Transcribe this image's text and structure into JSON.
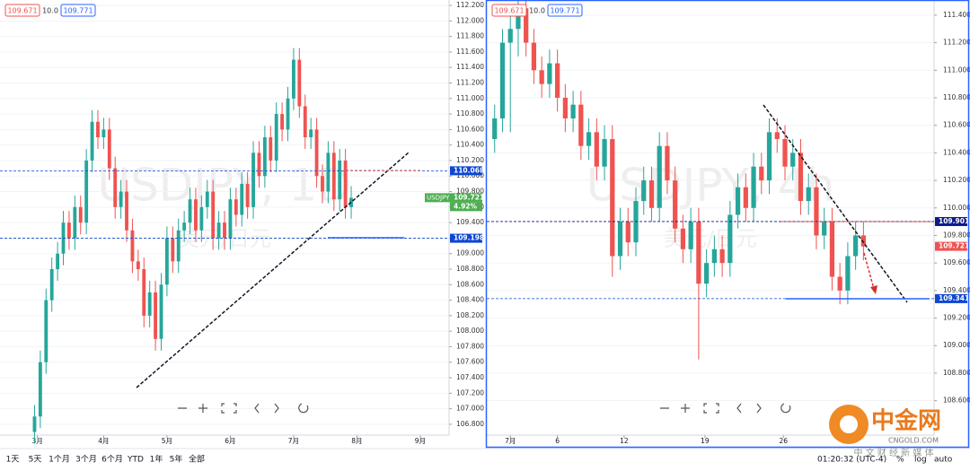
{
  "chart_data": [
    {
      "type": "candlestick",
      "watermark": "USDJPY, 1D",
      "watermark_sub": "美元/日元",
      "header": [
        "109.671",
        "10.0",
        "109.771"
      ],
      "up_color": "#26a69a",
      "down_color": "#ef5350",
      "xlim": [
        -6,
        72
      ],
      "xticks": [
        {
          "value": 0.5,
          "label": "3月"
        },
        {
          "value": 12,
          "label": "4月"
        },
        {
          "value": 23,
          "label": "5月"
        },
        {
          "value": 34,
          "label": "6月"
        },
        {
          "value": 45,
          "label": "7月"
        },
        {
          "value": 56,
          "label": "8月"
        },
        {
          "value": 67,
          "label": "9月"
        }
      ],
      "ylim": [
        106.66,
        112.27
      ],
      "yticks": [
        {
          "value": 106.8,
          "label": "106.800"
        },
        {
          "value": 107,
          "label": "107.000"
        },
        {
          "value": 107.2,
          "label": "107.200"
        },
        {
          "value": 107.4,
          "label": "107.400"
        },
        {
          "value": 107.6,
          "label": "107.600"
        },
        {
          "value": 107.8,
          "label": "107.800"
        },
        {
          "value": 108,
          "label": "108.000"
        },
        {
          "value": 108.2,
          "label": "108.200"
        },
        {
          "value": 108.4,
          "label": "108.400"
        },
        {
          "value": 108.6,
          "label": "108.600"
        },
        {
          "value": 108.8,
          "label": "108.800"
        },
        {
          "value": 109,
          "label": "109.000"
        },
        {
          "value": 109.2,
          "label": "109.200"
        },
        {
          "value": 109.4,
          "label": "109.400"
        },
        {
          "value": 109.6,
          "label": "109.600"
        },
        {
          "value": 109.8,
          "label": "109.800"
        },
        {
          "value": 110,
          "label": "110.000"
        },
        {
          "value": 110.2,
          "label": "110.200"
        },
        {
          "value": 110.4,
          "label": "110.400"
        },
        {
          "value": 110.6,
          "label": "110.600"
        },
        {
          "value": 110.8,
          "label": "110.800"
        },
        {
          "value": 111,
          "label": "111.000"
        },
        {
          "value": 111.2,
          "label": "111.200"
        },
        {
          "value": 111.4,
          "label": "111.400"
        },
        {
          "value": 111.6,
          "label": "111.600"
        },
        {
          "value": 111.8,
          "label": "111.800"
        },
        {
          "value": 112,
          "label": "112.000"
        },
        {
          "value": 112.2,
          "label": "112.200"
        }
      ],
      "open": [
        106.7,
        106.9,
        107.6,
        108.4,
        108.8,
        109.0,
        109.4,
        109.2,
        109.6,
        109.4,
        110.2,
        110.7,
        110.5,
        110.6,
        110.1,
        109.6,
        109.8,
        109.3,
        108.9,
        108.8,
        108.2,
        108.5,
        107.9,
        108.6,
        109.2,
        108.9,
        109.3,
        109.4,
        109.7,
        109.3,
        109.6,
        109.8,
        109.2,
        109.4,
        109.2,
        109.7,
        109.5,
        109.9,
        109.6,
        110.3,
        110.0,
        110.5,
        110.2,
        110.8,
        110.6,
        111.0,
        111.5,
        110.9,
        110.5,
        110.6,
        110.0,
        109.8,
        110.3,
        109.7,
        110.2,
        109.6
      ],
      "high": [
        107.05,
        107.75,
        108.55,
        108.95,
        109.15,
        109.55,
        109.55,
        109.75,
        109.75,
        110.35,
        110.85,
        110.85,
        110.75,
        110.75,
        110.25,
        109.95,
        109.95,
        109.45,
        109.05,
        108.95,
        108.65,
        108.65,
        108.75,
        109.35,
        109.35,
        109.45,
        109.55,
        109.85,
        109.85,
        109.75,
        109.95,
        109.95,
        109.55,
        109.55,
        109.85,
        109.85,
        110.05,
        110.05,
        110.45,
        110.45,
        110.65,
        110.65,
        110.95,
        110.95,
        111.15,
        111.65,
        111.65,
        111.05,
        110.75,
        110.75,
        110.15,
        110.45,
        110.45,
        110.35,
        110.35,
        109.87
      ],
      "low": [
        106.55,
        106.75,
        107.45,
        108.25,
        108.65,
        108.85,
        109.05,
        109.05,
        109.25,
        109.25,
        110.05,
        110.35,
        110.35,
        109.95,
        109.45,
        109.45,
        109.15,
        108.75,
        108.65,
        108.05,
        108.05,
        107.75,
        107.75,
        108.45,
        108.75,
        108.75,
        109.15,
        109.25,
        109.15,
        109.15,
        109.45,
        109.05,
        109.05,
        109.05,
        109.05,
        109.35,
        109.35,
        109.45,
        109.45,
        109.85,
        109.85,
        110.05,
        110.05,
        110.45,
        110.45,
        110.85,
        110.75,
        110.35,
        110.35,
        109.85,
        109.65,
        109.65,
        109.55,
        109.55,
        109.45,
        109.45
      ],
      "close": [
        106.9,
        107.6,
        108.4,
        108.8,
        109.0,
        109.4,
        109.2,
        109.6,
        109.4,
        110.2,
        110.7,
        110.5,
        110.6,
        110.1,
        109.6,
        109.8,
        109.3,
        108.9,
        108.8,
        108.2,
        108.5,
        107.9,
        108.6,
        109.2,
        108.9,
        109.3,
        109.4,
        109.7,
        109.3,
        109.6,
        109.8,
        109.2,
        109.4,
        109.2,
        109.7,
        109.5,
        109.9,
        109.6,
        110.3,
        110.0,
        110.5,
        110.2,
        110.8,
        110.6,
        111.0,
        111.5,
        110.9,
        110.5,
        110.6,
        110.0,
        109.8,
        110.3,
        109.7,
        110.2,
        109.6,
        109.72
      ],
      "price_lines": [
        {
          "value": 110.068,
          "color": "#0d47d1",
          "dashed": true
        },
        {
          "value": 109.198,
          "color": "#0d47d1",
          "dashed": true
        },
        {
          "value": 109.721,
          "color": "#4caf50",
          "name": "USDJPY",
          "change": "4.92%"
        }
      ]
    },
    {
      "type": "candlestick",
      "watermark": "USDJPY, 4h",
      "watermark_sub": "美元/日元",
      "header": [
        "109.671",
        "10.0",
        "109.771"
      ],
      "up_color": "#26a69a",
      "down_color": "#ef5350",
      "xlim": [
        -1,
        56
      ],
      "xticks": [
        {
          "value": 2,
          "label": "7月"
        },
        {
          "value": 8,
          "label": "6"
        },
        {
          "value": 16.5,
          "label": "12"
        },
        {
          "value": 26.8,
          "label": "19"
        },
        {
          "value": 36.8,
          "label": "26"
        }
      ],
      "ylim": [
        108.35,
        111.51
      ],
      "yticks": [
        {
          "value": 108.6,
          "label": "108.600"
        },
        {
          "value": 108.8,
          "label": "108.800"
        },
        {
          "value": 109,
          "label": "109.000"
        },
        {
          "value": 109.2,
          "label": "109.200"
        },
        {
          "value": 109.4,
          "label": "109.400"
        },
        {
          "value": 109.6,
          "label": "109.600"
        },
        {
          "value": 109.8,
          "label": "109.800"
        },
        {
          "value": 110,
          "label": "110.000"
        },
        {
          "value": 110.2,
          "label": "110.200"
        },
        {
          "value": 110.4,
          "label": "110.400"
        },
        {
          "value": 110.6,
          "label": "110.600"
        },
        {
          "value": 110.8,
          "label": "110.800"
        },
        {
          "value": 111,
          "label": "111.000"
        },
        {
          "value": 111.2,
          "label": "111.200"
        },
        {
          "value": 111.4,
          "label": "111.400"
        }
      ],
      "open": [
        110.5,
        110.65,
        111.2,
        111.3,
        111.45,
        111.2,
        111.0,
        110.9,
        111.05,
        110.8,
        110.65,
        110.75,
        110.45,
        110.55,
        110.3,
        110.5,
        109.65,
        109.9,
        109.75,
        110.05,
        110.2,
        110.0,
        110.45,
        110.2,
        109.85,
        109.7,
        109.9,
        109.45,
        109.6,
        109.7,
        109.6,
        109.95,
        110.15,
        110.0,
        110.3,
        110.2,
        110.55,
        110.5,
        110.3,
        110.4,
        110.05,
        110.15,
        109.8,
        109.9,
        109.5,
        109.4,
        109.65,
        109.8
      ],
      "high": [
        110.75,
        111.3,
        111.4,
        111.55,
        111.55,
        111.3,
        111.1,
        111.15,
        111.15,
        110.9,
        110.85,
        110.85,
        110.65,
        110.65,
        110.6,
        110.6,
        110.0,
        110.0,
        110.15,
        110.3,
        110.3,
        110.55,
        110.55,
        110.3,
        109.95,
        110.0,
        110.0,
        109.7,
        109.8,
        109.8,
        110.05,
        110.25,
        110.25,
        110.4,
        110.4,
        110.65,
        110.65,
        110.6,
        110.5,
        110.5,
        110.25,
        110.25,
        110.0,
        110.0,
        109.6,
        109.75,
        109.9,
        109.9
      ],
      "low": [
        110.4,
        110.55,
        110.55,
        111.1,
        111.1,
        110.9,
        110.8,
        110.8,
        110.7,
        110.55,
        110.55,
        110.35,
        110.35,
        110.2,
        110.2,
        109.5,
        109.55,
        109.65,
        109.65,
        109.95,
        109.9,
        109.9,
        110.1,
        109.75,
        109.6,
        109.6,
        108.9,
        109.35,
        109.5,
        109.5,
        109.5,
        109.85,
        109.9,
        109.9,
        110.1,
        110.1,
        110.4,
        110.2,
        110.2,
        109.95,
        109.95,
        109.7,
        109.7,
        109.4,
        109.3,
        109.3,
        109.55,
        109.62
      ],
      "close": [
        110.65,
        111.2,
        111.3,
        111.45,
        111.2,
        111.0,
        110.9,
        111.05,
        110.8,
        110.65,
        110.75,
        110.45,
        110.55,
        110.3,
        110.5,
        109.65,
        109.9,
        109.75,
        110.05,
        110.2,
        110.0,
        110.45,
        110.2,
        109.85,
        109.7,
        109.9,
        109.45,
        109.6,
        109.7,
        109.6,
        109.95,
        110.15,
        110.0,
        110.3,
        110.2,
        110.55,
        110.5,
        110.3,
        110.4,
        110.05,
        110.15,
        109.8,
        109.9,
        109.5,
        109.4,
        109.65,
        109.8,
        109.72
      ],
      "price_lines": [
        {
          "value": 109.901,
          "color": "#0d1a8a",
          "dashed": true
        },
        {
          "value": 109.721,
          "color": "#ef5350"
        },
        {
          "value": 109.341,
          "color": "#0d47d1",
          "dashed": true
        }
      ]
    }
  ],
  "toolbar": {
    "ranges": [
      "1天",
      "5天",
      "1个月",
      "3个月",
      "6个月",
      "YTD",
      "1年",
      "5年",
      "全部"
    ],
    "time": "01:20:32 (UTC-4)",
    "options": [
      "%",
      "log",
      "auto"
    ]
  },
  "logo": {
    "name": "中金网",
    "site": "CNGOLD.COM",
    "slogan": "中 文 财 经 新 媒 体"
  }
}
